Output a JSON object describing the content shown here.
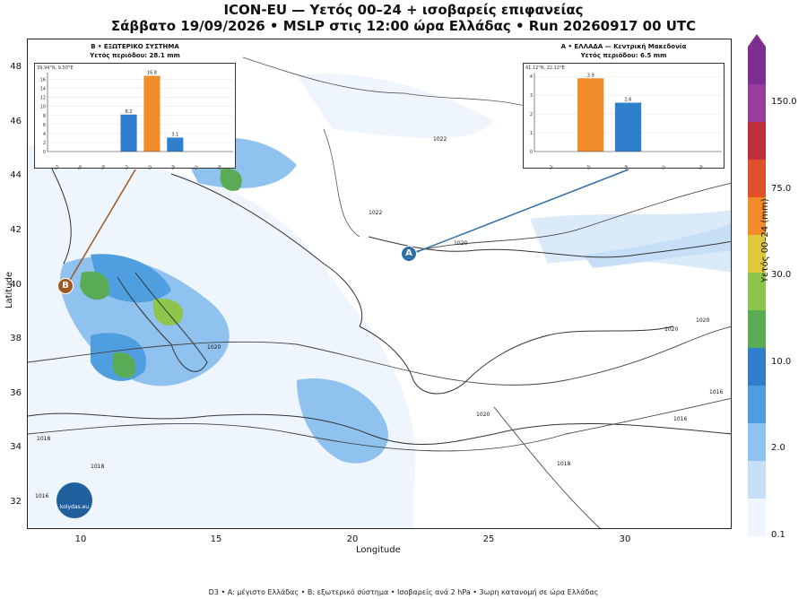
{
  "title_line1": "ICON-EU — Υετός 00–24 + ισοβαρείς επιφανείας",
  "title_line2": "Σάββατο 19/09/2026 • MSLP στις 12:00 ώρα Ελλάδας • Run 20260917 00 UTC",
  "axes": {
    "xlabel": "Longitude",
    "ylabel": "Latitude",
    "xticks": [
      "10",
      "15",
      "20",
      "25",
      "30"
    ],
    "yticks": [
      "48",
      "46",
      "44",
      "42",
      "40",
      "38",
      "36",
      "34",
      "32"
    ]
  },
  "colorbar": {
    "label": "Υετός 00–24 (mm)",
    "ticks": [
      "150.0",
      "75.0",
      "30.0",
      "10.0",
      "2.0",
      "0.1"
    ],
    "colors": [
      "#eef5fd",
      "#c6dff7",
      "#8fc2ee",
      "#4f9fe0",
      "#2f7fcc",
      "#5aab55",
      "#8ec64c",
      "#e0c83a",
      "#f08c2a",
      "#e0502a",
      "#c0303a",
      "#9a3da0",
      "#7d2f8f"
    ]
  },
  "isobar_labels": [
    "1022",
    "1020",
    "1020",
    "1020",
    "1018",
    "1018",
    "1016",
    "1016",
    "1018",
    "1020",
    "1022",
    "1020",
    "1016"
  ],
  "inset_a": {
    "marker": "A",
    "title": "A • ΕΛΛΑΔΑ — Κεντρική Μακεδονία",
    "subtitle": "Υετός περιόδου: 6.5 mm",
    "coord": "41.12°N, 22.12°E",
    "yticks": [
      "4",
      "3",
      "2",
      "1",
      "0"
    ],
    "xticks": [
      "09-12",
      "12-15",
      "15-18",
      "18-21",
      "21-24"
    ],
    "bars": [
      {
        "slot": "12-15",
        "value": 3.9,
        "label": "3.9",
        "color": "#f08c2a"
      },
      {
        "slot": "15-18",
        "value": 2.6,
        "label": "2.6",
        "color": "#2f7fcc"
      }
    ]
  },
  "inset_b": {
    "marker": "B",
    "title": "B • ΕΞΩΤΕΡΙΚΟ ΣΥΣΤΗΜΑ",
    "subtitle": "Υετός περιόδου: 28.1 mm",
    "coord": "39.94°N, 9.50°E",
    "yticks": [
      "16",
      "14",
      "12",
      "10",
      "8",
      "6",
      "4",
      "2",
      "0"
    ],
    "xticks": [
      "00-03",
      "03-06",
      "06-09",
      "09-12",
      "12-15",
      "15-18",
      "18-21",
      "21-24"
    ],
    "bars": [
      {
        "slot": "09-12",
        "value": 8.2,
        "label": "8.2",
        "color": "#2f7fcc"
      },
      {
        "slot": "12-15",
        "value": 16.8,
        "label": "16.8",
        "color": "#f08c2a"
      },
      {
        "slot": "15-18",
        "value": 3.1,
        "label": "3.1",
        "color": "#2f7fcc"
      }
    ]
  },
  "logo_text": "kolydas.eu",
  "footer": "D3 • A: μέγιστο Ελλάδας • B: εξωτερικό σύστημα • Ισοβαρείς ανά 2 hPa • 3ωρη κατανομή σε ώρα Ελλάδας"
}
